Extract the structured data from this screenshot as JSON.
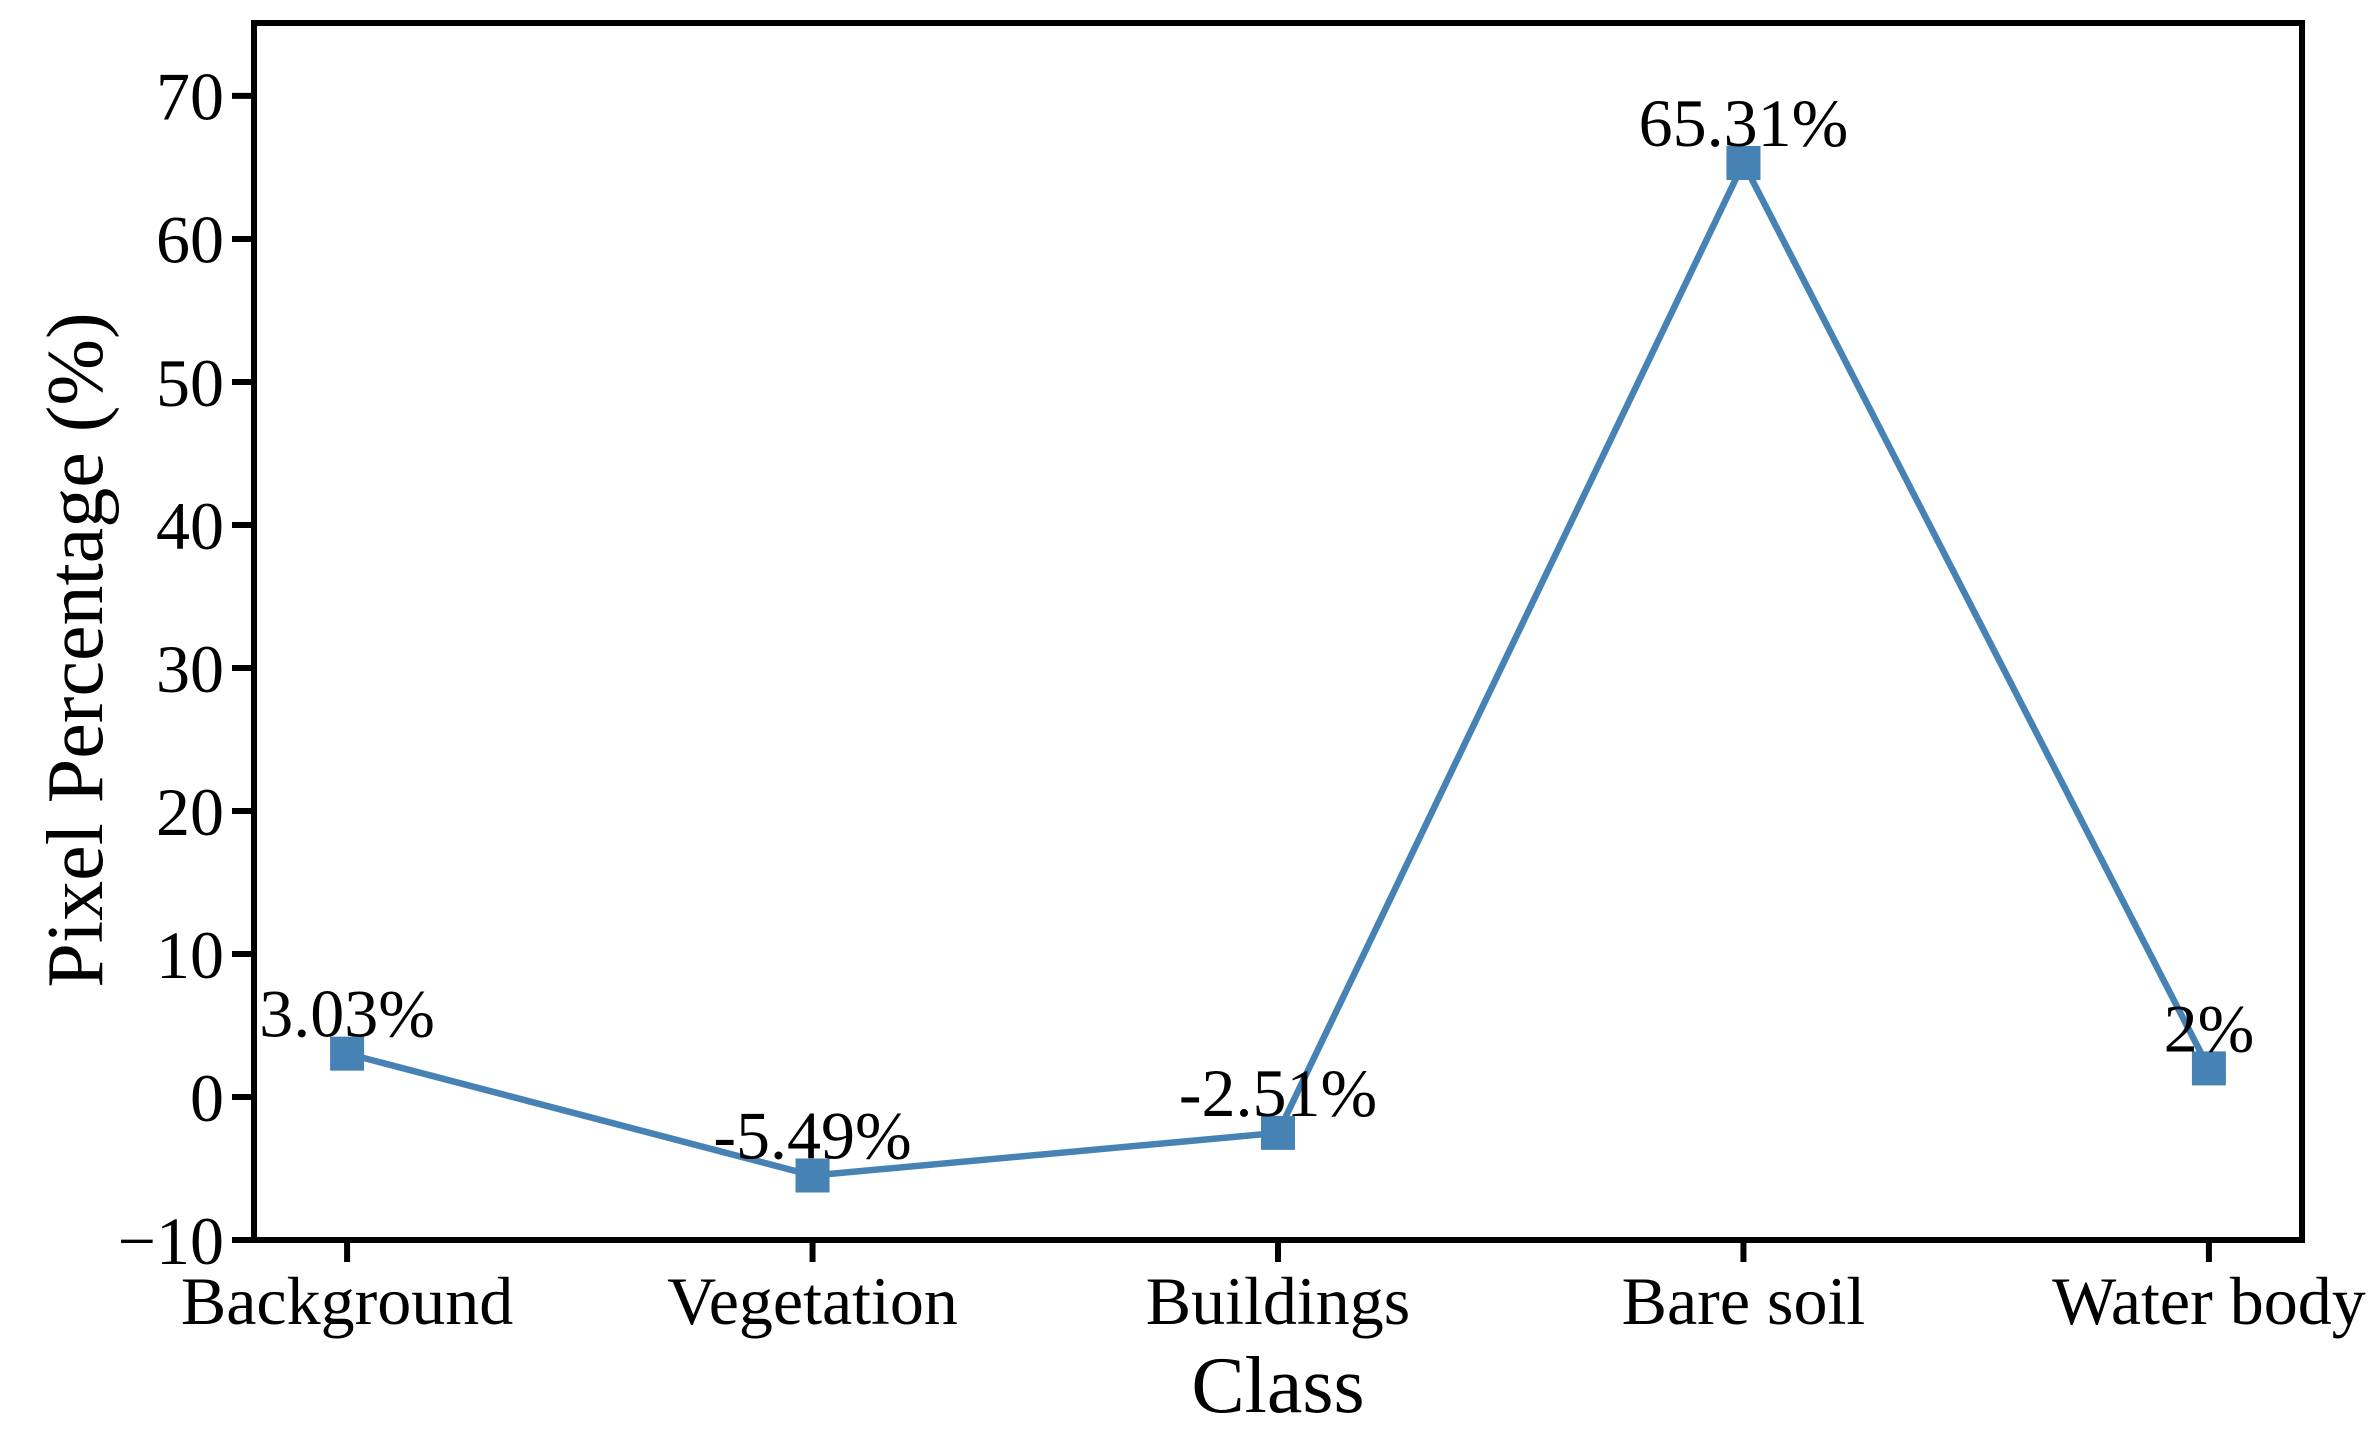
{
  "figure": {
    "background": "#ffffff",
    "text_color": "#000000",
    "accent_color": "#4682B4"
  },
  "chart_data": {
    "type": "line",
    "title": "",
    "xlabel": "Class",
    "ylabel": "Pixel Percentage (%)",
    "categories": [
      "Background",
      "Vegetation",
      "Buildings",
      "Bare soil",
      "Water body"
    ],
    "series": [
      {
        "name": "Pixel Percentage",
        "color": "#4682B4",
        "marker": "square",
        "values": [
          3.03,
          -5.49,
          -2.51,
          65.31,
          2
        ]
      }
    ],
    "point_labels": [
      "3.03%",
      "-5.49%",
      "-2.51%",
      "65.31%",
      "2%"
    ],
    "y_ticks": [
      {
        "value": 70,
        "label": "70"
      },
      {
        "value": 60,
        "label": "60"
      },
      {
        "value": 50,
        "label": "50"
      },
      {
        "value": 40,
        "label": "40"
      },
      {
        "value": 30,
        "label": "30"
      },
      {
        "value": 20,
        "label": "20"
      },
      {
        "value": 10,
        "label": "10"
      },
      {
        "value": 0,
        "label": "0"
      },
      {
        "value": -10,
        "label": "−10"
      }
    ],
    "ylim": [
      -10,
      75.1
    ],
    "grid": false,
    "legend_position": "none"
  }
}
